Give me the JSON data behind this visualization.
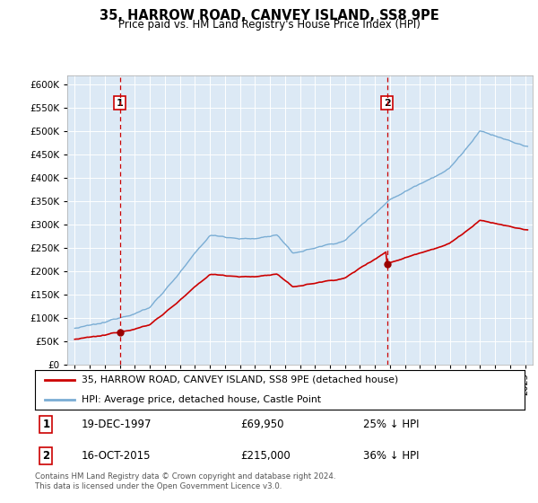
{
  "title": "35, HARROW ROAD, CANVEY ISLAND, SS8 9PE",
  "subtitle": "Price paid vs. HM Land Registry's House Price Index (HPI)",
  "background_color": "#dce9f5",
  "fig_bg_color": "#ffffff",
  "sale1_date_x": 1998.0,
  "sale1_price": 69950,
  "sale1_label": "1",
  "sale2_date_x": 2015.8,
  "sale2_price": 215000,
  "sale2_label": "2",
  "red_line_color": "#cc0000",
  "blue_line_color": "#7aadd4",
  "dashed_color": "#cc0000",
  "marker_color": "#990000",
  "ylim": [
    0,
    620000
  ],
  "yticks": [
    0,
    50000,
    100000,
    150000,
    200000,
    250000,
    300000,
    350000,
    400000,
    450000,
    500000,
    550000,
    600000
  ],
  "legend_label_red": "35, HARROW ROAD, CANVEY ISLAND, SS8 9PE (detached house)",
  "legend_label_blue": "HPI: Average price, detached house, Castle Point",
  "note1_num": "1",
  "note1_date": "19-DEC-1997",
  "note1_price": "£69,950",
  "note1_hpi": "25% ↓ HPI",
  "note2_num": "2",
  "note2_date": "16-OCT-2015",
  "note2_price": "£215,000",
  "note2_hpi": "36% ↓ HPI",
  "footer": "Contains HM Land Registry data © Crown copyright and database right 2024.\nThis data is licensed under the Open Government Licence v3.0.",
  "xlim": [
    1994.5,
    2025.5
  ]
}
